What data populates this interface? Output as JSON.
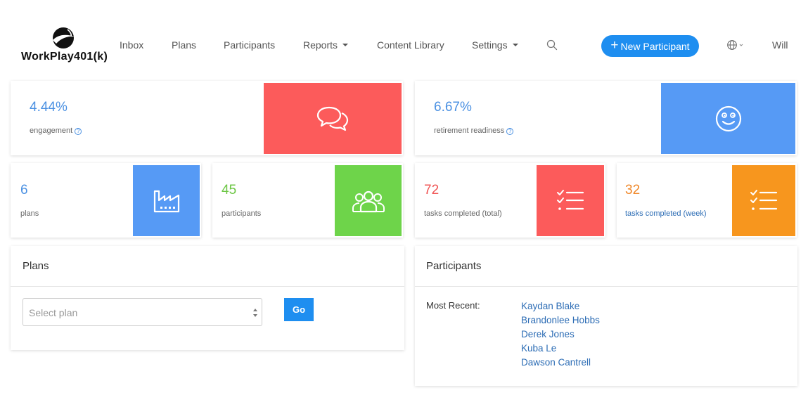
{
  "brand": {
    "name": "WorkPlay401(k)",
    "icon": "logo-mark-icon"
  },
  "nav": {
    "inbox": "Inbox",
    "plans": "Plans",
    "participants": "Participants",
    "reports": "Reports",
    "content_library": "Content Library",
    "settings": "Settings",
    "new_participant": "New Participant",
    "user": "Will"
  },
  "stats": {
    "engagement": {
      "value": "4.44%",
      "label": "engagement",
      "color": "#4a90e2",
      "tile_color": "#fc5b5b",
      "icon": "chat-bubbles-icon"
    },
    "readiness": {
      "value": "6.67%",
      "label": "retirement readiness",
      "color": "#4a90e2",
      "tile_color": "#569af5",
      "icon": "smiley-icon"
    },
    "plans": {
      "value": "6",
      "label": "plans",
      "color": "#4a90e2",
      "tile_color": "#569af5",
      "icon": "factory-icon"
    },
    "participants": {
      "value": "45",
      "label": "participants",
      "color": "#6cc644",
      "tile_color": "#6ed44a",
      "icon": "users-icon"
    },
    "tasks_total": {
      "value": "72",
      "label": "tasks completed (total)",
      "color": "#f05454",
      "tile_color": "#fc5b5b",
      "icon": "checklist-icon"
    },
    "tasks_week": {
      "value": "32",
      "label": "tasks completed (week)",
      "color": "#f0882a",
      "tile_color": "#f7961e",
      "icon": "checklist-icon"
    }
  },
  "plans_panel": {
    "title": "Plans",
    "select_placeholder": "Select plan",
    "go_label": "Go"
  },
  "participants_panel": {
    "title": "Participants",
    "recent_label": "Most Recent:",
    "recent": [
      "Kaydan Blake",
      "Brandonlee Hobbs",
      "Derek Jones",
      "Kuba Le",
      "Dawson Cantrell"
    ]
  }
}
